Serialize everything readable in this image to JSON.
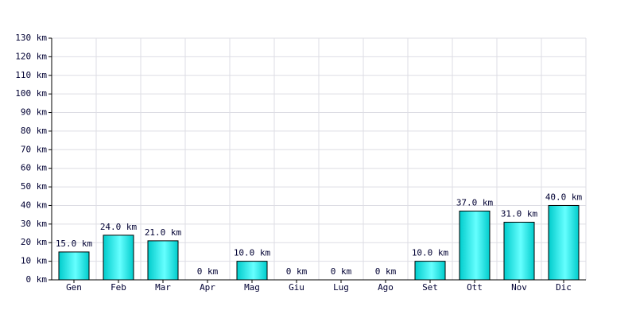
{
  "chart_data": {
    "type": "bar",
    "categories": [
      "Gen",
      "Feb",
      "Mar",
      "Apr",
      "Mag",
      "Giu",
      "Lug",
      "Ago",
      "Set",
      "Ott",
      "Nov",
      "Dic"
    ],
    "values": [
      15,
      24,
      21,
      0,
      10,
      0,
      0,
      0,
      10,
      37,
      31,
      40
    ],
    "value_labels": [
      "15.0 km",
      "24.0 km",
      "21.0 km",
      "0 km",
      "10.0 km",
      "0 km",
      "0 km",
      "0 km",
      "10.0 km",
      "37.0 km",
      "31.0 km",
      "40.0 km"
    ],
    "color": "#00cccc",
    "ylim": [
      0,
      130
    ],
    "yticks": [
      {
        "value": 0,
        "label": "0 km"
      },
      {
        "value": 10,
        "label": "10 km"
      },
      {
        "value": 20,
        "label": "20 km"
      },
      {
        "value": 30,
        "label": "30 km"
      },
      {
        "value": 40,
        "label": "40 km"
      },
      {
        "value": 50,
        "label": "50 km"
      },
      {
        "value": 60,
        "label": "60 km"
      },
      {
        "value": 70,
        "label": "70 km"
      },
      {
        "value": 80,
        "label": "80 km"
      },
      {
        "value": 90,
        "label": "90 km"
      },
      {
        "value": 100,
        "label": "100 km"
      },
      {
        "value": 110,
        "label": "110 km"
      },
      {
        "value": 120,
        "label": "120 km"
      },
      {
        "value": 130,
        "label": "130 km"
      }
    ],
    "grid": true
  }
}
